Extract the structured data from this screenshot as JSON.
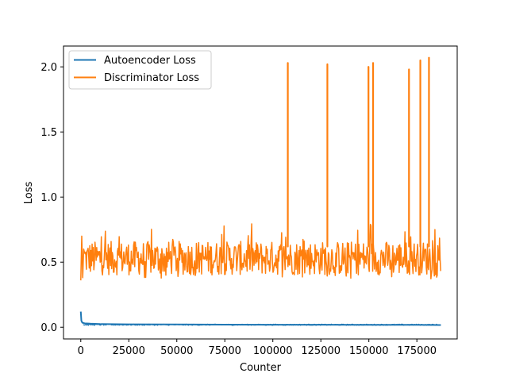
{
  "chart_data": {
    "type": "line",
    "title": "",
    "xlabel": "Counter",
    "ylabel": "Loss",
    "xlim": [
      -9000,
      196000
    ],
    "ylim": [
      -0.09,
      2.16
    ],
    "x_ticks": [
      0,
      25000,
      50000,
      75000,
      100000,
      125000,
      150000,
      175000
    ],
    "x_tick_labels": [
      "0",
      "25000",
      "50000",
      "75000",
      "100000",
      "125000",
      "150000",
      "175000"
    ],
    "y_ticks": [
      0.0,
      0.5,
      1.0,
      1.5,
      2.0
    ],
    "y_tick_labels": [
      "0.0",
      "0.5",
      "1.0",
      "1.5",
      "2.0"
    ],
    "grid": false,
    "legend_position": "top-left",
    "x_max": 187500,
    "series": [
      {
        "name": "Autoencoder Loss",
        "color": "#1f77b4",
        "points": [
          [
            0,
            0.12
          ],
          [
            300,
            0.05
          ],
          [
            800,
            0.035
          ],
          [
            2000,
            0.03
          ],
          [
            5000,
            0.027
          ],
          [
            10000,
            0.024
          ],
          [
            25000,
            0.022
          ],
          [
            50000,
            0.021
          ],
          [
            75000,
            0.02
          ],
          [
            100000,
            0.019
          ],
          [
            125000,
            0.019
          ],
          [
            150000,
            0.018
          ],
          [
            175000,
            0.018
          ],
          [
            187500,
            0.017
          ]
        ],
        "band_low": 0.014,
        "band_high": 0.024
      },
      {
        "name": "Discriminator Loss",
        "color": "#ff7f0e",
        "start_points": [
          [
            0,
            0.36
          ],
          [
            500,
            0.7
          ],
          [
            1000,
            0.38
          ],
          [
            1500,
            0.6
          ]
        ],
        "band_low": 0.4,
        "band_high": 0.66,
        "extremes_low": 0.37,
        "extremes_high": 0.8,
        "spikes": [
          [
            107800,
            2.03
          ],
          [
            128400,
            2.02
          ],
          [
            149800,
            2.0
          ],
          [
            152200,
            2.03
          ],
          [
            170900,
            1.98
          ],
          [
            176800,
            2.05
          ],
          [
            181300,
            2.07
          ]
        ]
      }
    ]
  }
}
